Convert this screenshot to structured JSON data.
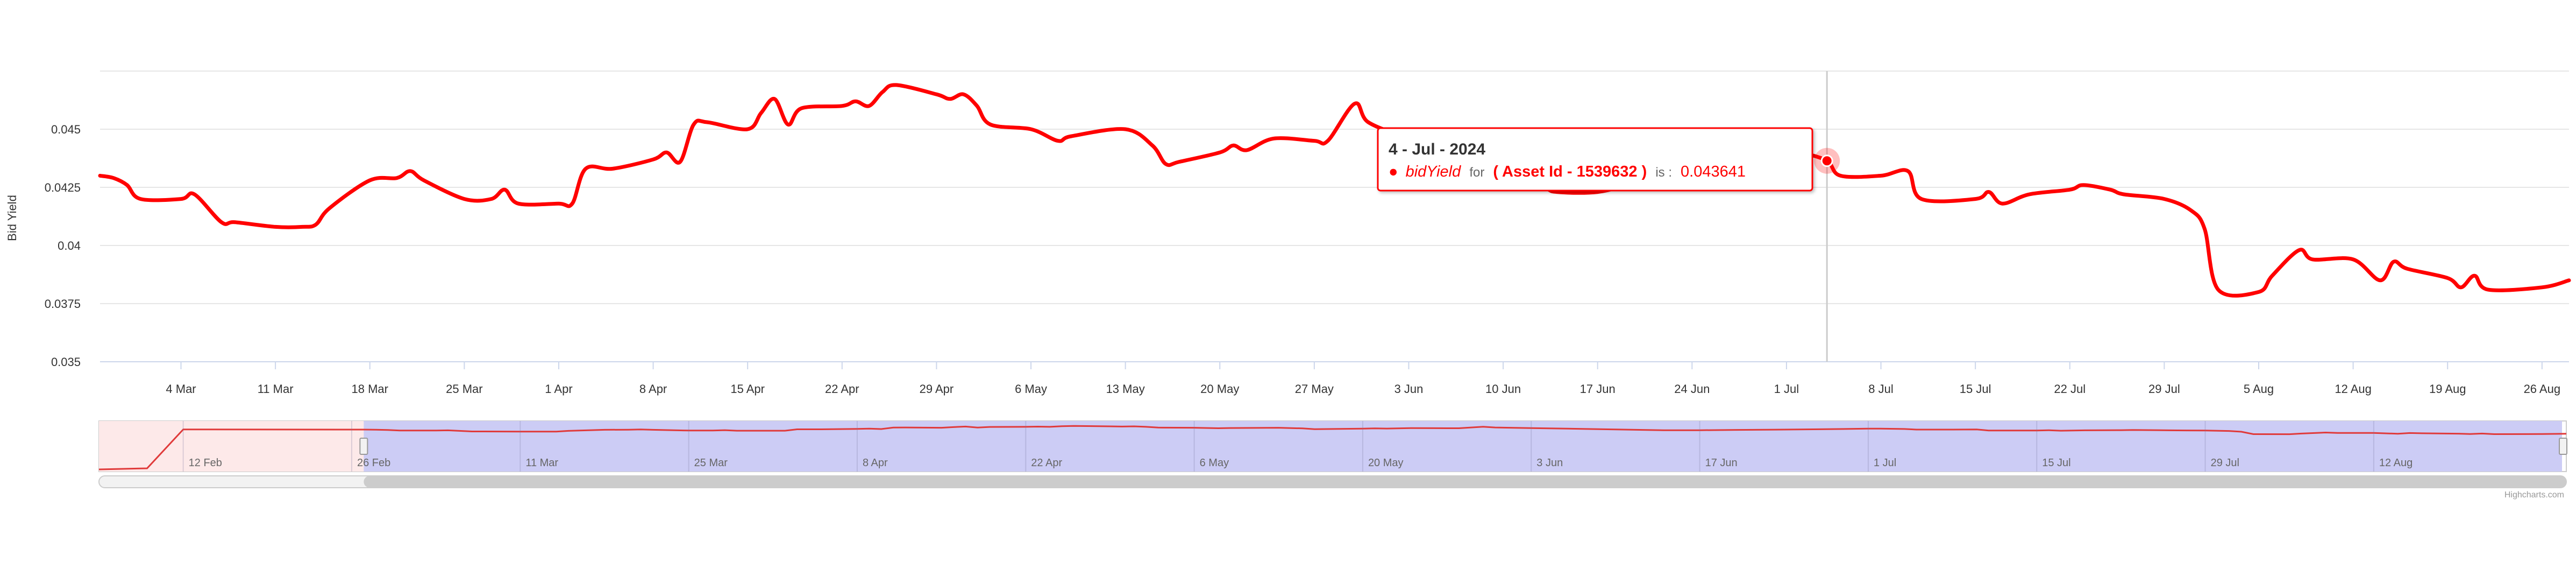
{
  "chart_data": {
    "type": "line",
    "ylabel": "Bid Yield",
    "xlabel": "",
    "ylim": [
      0.035,
      0.0475
    ],
    "y_ticks": [
      "0.035",
      "0.0375",
      "0.04",
      "0.0425",
      "0.045"
    ],
    "grid": true,
    "x_tick_labels": [
      "4 Mar",
      "11 Mar",
      "18 Mar",
      "25 Mar",
      "1 Apr",
      "8 Apr",
      "15 Apr",
      "22 Apr",
      "29 Apr",
      "6 May",
      "13 May",
      "20 May",
      "27 May",
      "3 Jun",
      "10 Jun",
      "17 Jun",
      "24 Jun",
      "1 Jul",
      "8 Jul",
      "15 Jul",
      "22 Jul",
      "29 Jul",
      "5 Aug",
      "12 Aug",
      "19 Aug",
      "26 Aug"
    ],
    "series": [
      {
        "name": "bidYield",
        "color": "#ff0000",
        "points": [
          [
            "2024-02-27",
            0.043
          ],
          [
            "2024-02-28",
            0.0429
          ],
          [
            "2024-02-29",
            0.0426
          ],
          [
            "2024-03-01",
            0.042
          ],
          [
            "2024-03-04",
            0.042
          ],
          [
            "2024-03-05",
            0.0422
          ],
          [
            "2024-03-07",
            0.041
          ],
          [
            "2024-03-08",
            0.041
          ],
          [
            "2024-03-11",
            0.0408
          ],
          [
            "2024-03-13",
            0.0408
          ],
          [
            "2024-03-14",
            0.0409
          ],
          [
            "2024-03-15",
            0.0416
          ],
          [
            "2024-03-18",
            0.0428
          ],
          [
            "2024-03-20",
            0.0429
          ],
          [
            "2024-03-21",
            0.0432
          ],
          [
            "2024-03-22",
            0.0428
          ],
          [
            "2024-03-25",
            0.042
          ],
          [
            "2024-03-27",
            0.042
          ],
          [
            "2024-03-28",
            0.0424
          ],
          [
            "2024-03-29",
            0.0418
          ],
          [
            "2024-04-01",
            0.0418
          ],
          [
            "2024-04-02",
            0.0418
          ],
          [
            "2024-04-03",
            0.0433
          ],
          [
            "2024-04-05",
            0.0433
          ],
          [
            "2024-04-08",
            0.0437
          ],
          [
            "2024-04-09",
            0.044
          ],
          [
            "2024-04-10",
            0.0436
          ],
          [
            "2024-04-11",
            0.0452
          ],
          [
            "2024-04-12",
            0.0453
          ],
          [
            "2024-04-15",
            0.045
          ],
          [
            "2024-04-16",
            0.0457
          ],
          [
            "2024-04-17",
            0.0463
          ],
          [
            "2024-04-18",
            0.0452
          ],
          [
            "2024-04-19",
            0.0459
          ],
          [
            "2024-04-22",
            0.046
          ],
          [
            "2024-04-23",
            0.0462
          ],
          [
            "2024-04-24",
            0.046
          ],
          [
            "2024-04-25",
            0.0466
          ],
          [
            "2024-04-26",
            0.0469
          ],
          [
            "2024-04-29",
            0.0465
          ],
          [
            "2024-04-30",
            0.0463
          ],
          [
            "2024-05-01",
            0.0465
          ],
          [
            "2024-05-02",
            0.046
          ],
          [
            "2024-05-03",
            0.0452
          ],
          [
            "2024-05-06",
            0.045
          ],
          [
            "2024-05-08",
            0.0445
          ],
          [
            "2024-05-09",
            0.0447
          ],
          [
            "2024-05-13",
            0.045
          ],
          [
            "2024-05-15",
            0.0443
          ],
          [
            "2024-05-16",
            0.0435
          ],
          [
            "2024-05-17",
            0.0436
          ],
          [
            "2024-05-20",
            0.044
          ],
          [
            "2024-05-21",
            0.0443
          ],
          [
            "2024-05-22",
            0.0441
          ],
          [
            "2024-05-24",
            0.0446
          ],
          [
            "2024-05-27",
            0.0445
          ],
          [
            "2024-05-28",
            0.0445
          ],
          [
            "2024-05-30",
            0.0461
          ],
          [
            "2024-05-31",
            0.0453
          ],
          [
            "2024-06-03",
            0.0446
          ],
          [
            "2024-06-06",
            0.044
          ],
          [
            "2024-06-10",
            0.0432
          ],
          [
            "2024-06-13",
            0.0425
          ],
          [
            "2024-06-14",
            0.0423
          ],
          [
            "2024-06-17",
            0.0423
          ],
          [
            "2024-06-20",
            0.0427
          ],
          [
            "2024-06-24",
            0.043
          ],
          [
            "2024-06-27",
            0.0434
          ],
          [
            "2024-07-01",
            0.044
          ],
          [
            "2024-07-02",
            0.044
          ],
          [
            "2024-07-04",
            0.043641
          ],
          [
            "2024-07-05",
            0.043
          ],
          [
            "2024-07-08",
            0.043
          ],
          [
            "2024-07-10",
            0.0432
          ],
          [
            "2024-07-11",
            0.042
          ],
          [
            "2024-07-15",
            0.042
          ],
          [
            "2024-07-16",
            0.0423
          ],
          [
            "2024-07-17",
            0.0418
          ],
          [
            "2024-07-19",
            0.0422
          ],
          [
            "2024-07-22",
            0.0424
          ],
          [
            "2024-07-23",
            0.0426
          ],
          [
            "2024-07-25",
            0.0424
          ],
          [
            "2024-07-26",
            0.0422
          ],
          [
            "2024-07-29",
            0.042
          ],
          [
            "2024-07-31",
            0.0415
          ],
          [
            "2024-08-01",
            0.0407
          ],
          [
            "2024-08-02",
            0.0381
          ],
          [
            "2024-08-05",
            0.038
          ],
          [
            "2024-08-06",
            0.0387
          ],
          [
            "2024-08-08",
            0.0398
          ],
          [
            "2024-08-09",
            0.0394
          ],
          [
            "2024-08-12",
            0.0394
          ],
          [
            "2024-08-14",
            0.0385
          ],
          [
            "2024-08-15",
            0.0393
          ],
          [
            "2024-08-16",
            0.039
          ],
          [
            "2024-08-19",
            0.0386
          ],
          [
            "2024-08-20",
            0.0382
          ],
          [
            "2024-08-21",
            0.0387
          ],
          [
            "2024-08-22",
            0.0381
          ],
          [
            "2024-08-26",
            0.0382
          ],
          [
            "2024-08-28",
            0.0385
          ]
        ]
      }
    ],
    "tooltip": {
      "date": "4 - Jul - 2024",
      "bullet": "●",
      "series": "bidYield",
      "for_text": "for",
      "asset": "( Asset Id - 1539632 )",
      "is_text": "is :",
      "value": "0.043641"
    },
    "navigator": {
      "labels": [
        "12 Feb",
        "26 Feb",
        "11 Mar",
        "25 Mar",
        "8 Apr",
        "22 Apr",
        "6 May",
        "20 May",
        "3 Jun",
        "17 Jun",
        "1 Jul",
        "15 Jul",
        "29 Jul",
        "12 Aug"
      ]
    }
  },
  "credits": "Highcharts.com",
  "colors": {
    "line": "#ff0000",
    "navigator_mask": "#ccccf5",
    "grid": "#e6e6e6"
  }
}
